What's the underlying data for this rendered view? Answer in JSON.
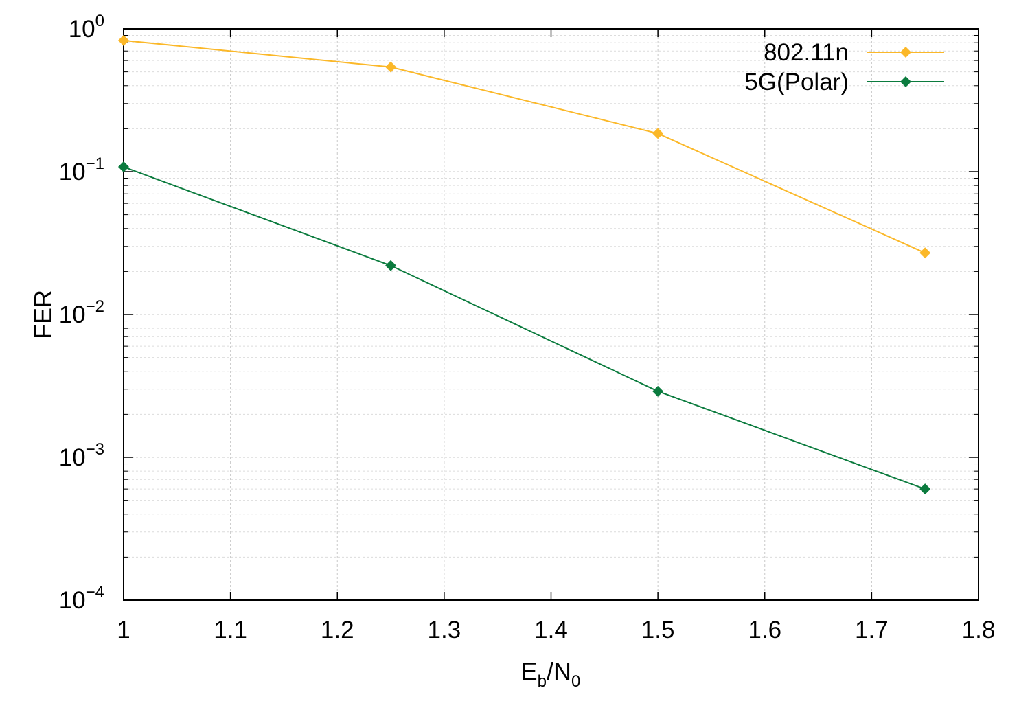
{
  "chart_data": {
    "type": "line",
    "title": "",
    "xlabel": {
      "main": "E",
      "sub1": "b",
      "mid": "/N",
      "sub2": "0"
    },
    "ylabel": "FER",
    "xlim": [
      1,
      1.8
    ],
    "ylim": [
      0.0001,
      1
    ],
    "yscale": "log",
    "grid": true,
    "legend_position": "top-right",
    "x_ticks": [
      "1",
      "1.1",
      "1.2",
      "1.3",
      "1.4",
      "1.5",
      "1.6",
      "1.7",
      "1.8"
    ],
    "y_ticks": [
      {
        "base": "10",
        "exp": "0"
      },
      {
        "base": "10",
        "exp": "−1"
      },
      {
        "base": "10",
        "exp": "−2"
      },
      {
        "base": "10",
        "exp": "−3"
      },
      {
        "base": "10",
        "exp": "−4"
      }
    ],
    "series": [
      {
        "name": "802.11n",
        "color": "#fbb829",
        "marker": "diamond",
        "x": [
          1.0,
          1.25,
          1.5,
          1.75
        ],
        "y": [
          0.83,
          0.54,
          0.185,
          0.027
        ]
      },
      {
        "name": "5G(Polar)",
        "color": "#0b7b3e",
        "marker": "diamond",
        "x": [
          1.0,
          1.25,
          1.5,
          1.75
        ],
        "y": [
          0.108,
          0.022,
          0.0029,
          0.0006
        ]
      }
    ]
  }
}
